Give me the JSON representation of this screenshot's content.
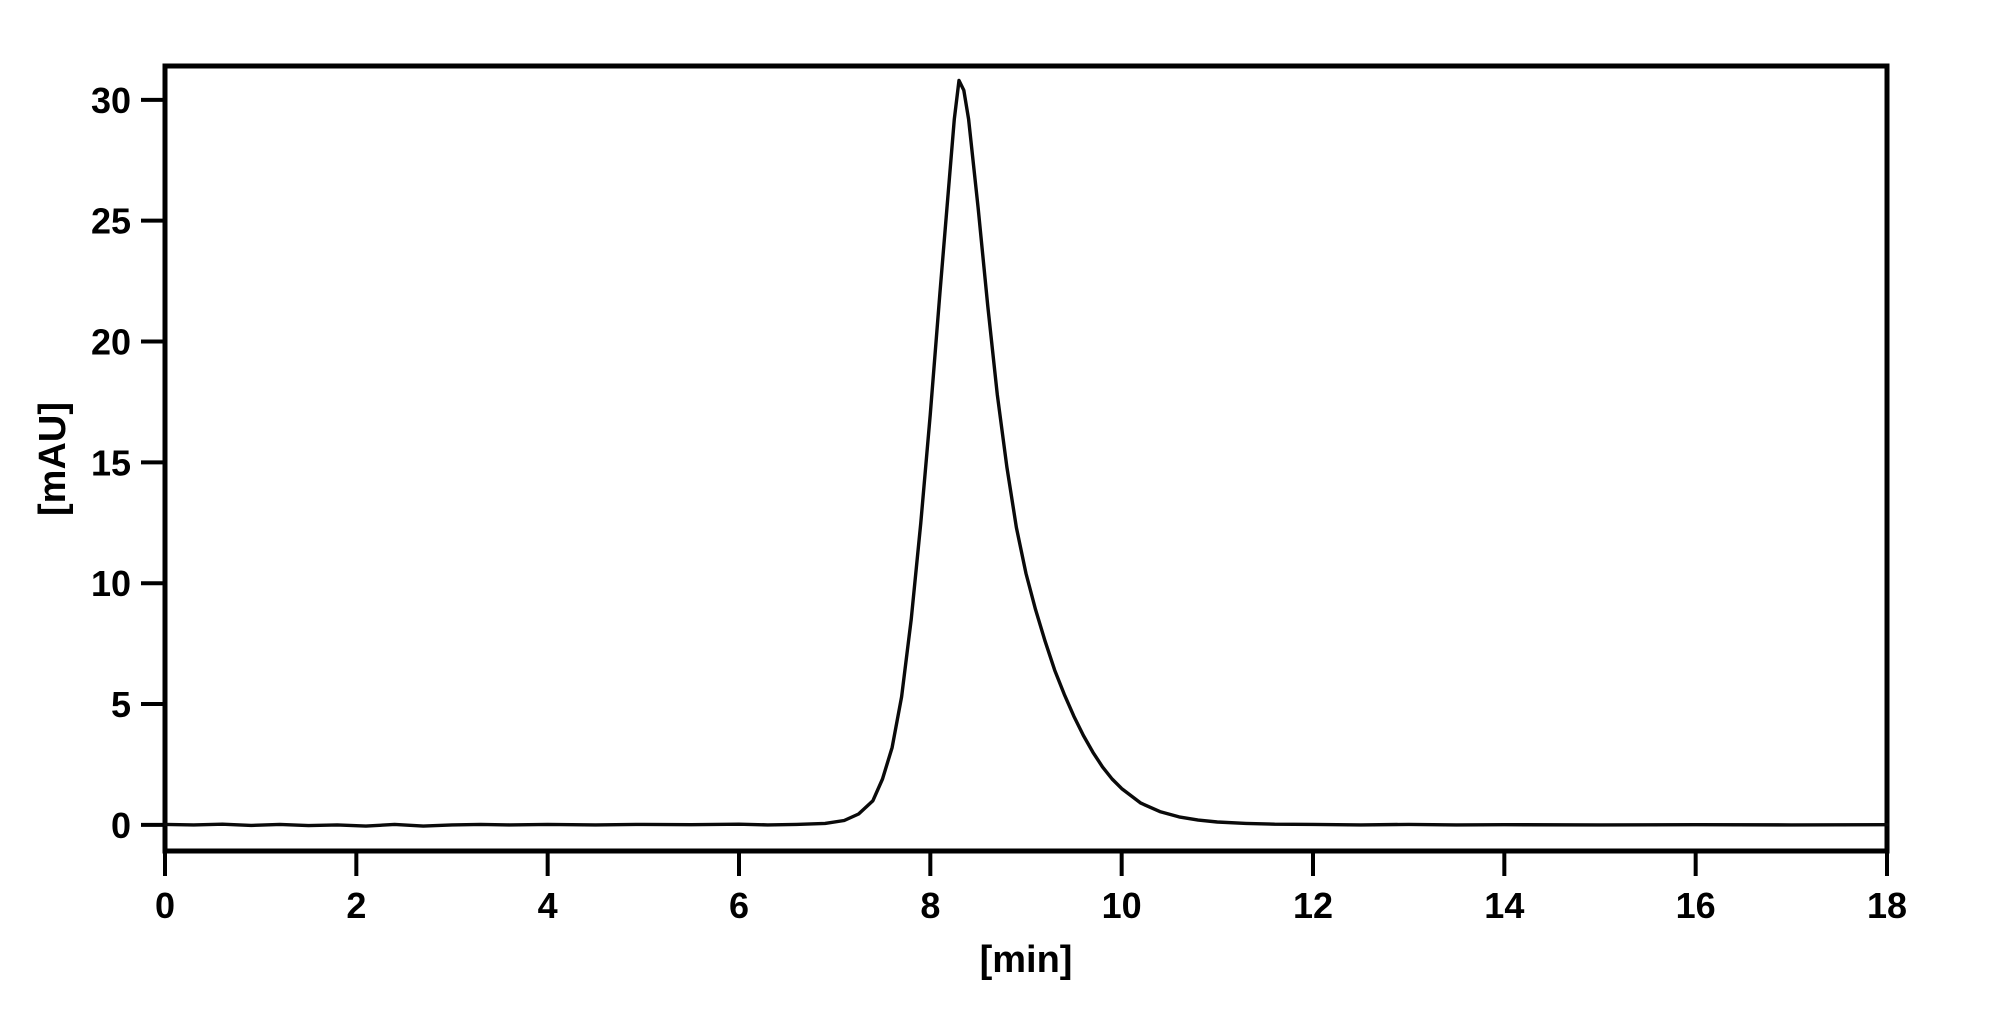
{
  "figure": {
    "background_color": "#ffffff",
    "frame_color": "#000000",
    "trace_color": "#0a0a0a"
  },
  "chart_data": {
    "type": "line",
    "title": "",
    "xlabel": "[min]",
    "ylabel": "[mAU]",
    "xlim": [
      0,
      18
    ],
    "ylim": [
      -1.08,
      31.4
    ],
    "x_ticks": [
      0,
      2,
      4,
      6,
      8,
      10,
      12,
      14,
      16,
      18
    ],
    "y_ticks": [
      0,
      5,
      10,
      15,
      20,
      25,
      30
    ],
    "grid": false,
    "legend": "none",
    "peak_apex": {
      "x_min": 8.3,
      "y_mAU": 30.8
    },
    "series": [
      {
        "name": "absorbance-trace",
        "color": "#0a0a0a",
        "points": [
          [
            0.0,
            0.02
          ],
          [
            0.3,
            0.0
          ],
          [
            0.6,
            0.03
          ],
          [
            0.9,
            -0.02
          ],
          [
            1.2,
            0.02
          ],
          [
            1.5,
            -0.03
          ],
          [
            1.8,
            0.0
          ],
          [
            2.1,
            -0.05
          ],
          [
            2.4,
            0.02
          ],
          [
            2.7,
            -0.05
          ],
          [
            3.0,
            0.0
          ],
          [
            3.3,
            0.02
          ],
          [
            3.6,
            0.0
          ],
          [
            4.0,
            0.02
          ],
          [
            4.5,
            0.0
          ],
          [
            5.0,
            0.02
          ],
          [
            5.5,
            0.01
          ],
          [
            6.0,
            0.03
          ],
          [
            6.3,
            0.0
          ],
          [
            6.6,
            0.02
          ],
          [
            6.9,
            0.06
          ],
          [
            7.1,
            0.18
          ],
          [
            7.25,
            0.45
          ],
          [
            7.4,
            1.0
          ],
          [
            7.5,
            1.9
          ],
          [
            7.6,
            3.2
          ],
          [
            7.7,
            5.3
          ],
          [
            7.8,
            8.5
          ],
          [
            7.9,
            12.5
          ],
          [
            8.0,
            17.0
          ],
          [
            8.1,
            22.0
          ],
          [
            8.2,
            26.8
          ],
          [
            8.25,
            29.2
          ],
          [
            8.3,
            30.8
          ],
          [
            8.35,
            30.4
          ],
          [
            8.4,
            29.2
          ],
          [
            8.5,
            25.5
          ],
          [
            8.6,
            21.5
          ],
          [
            8.7,
            17.8
          ],
          [
            8.8,
            14.8
          ],
          [
            8.9,
            12.3
          ],
          [
            9.0,
            10.4
          ],
          [
            9.1,
            8.9
          ],
          [
            9.2,
            7.6
          ],
          [
            9.3,
            6.4
          ],
          [
            9.4,
            5.4
          ],
          [
            9.5,
            4.5
          ],
          [
            9.6,
            3.7
          ],
          [
            9.7,
            3.0
          ],
          [
            9.8,
            2.4
          ],
          [
            9.9,
            1.9
          ],
          [
            10.0,
            1.5
          ],
          [
            10.2,
            0.9
          ],
          [
            10.4,
            0.55
          ],
          [
            10.6,
            0.33
          ],
          [
            10.8,
            0.2
          ],
          [
            11.0,
            0.12
          ],
          [
            11.3,
            0.06
          ],
          [
            11.6,
            0.03
          ],
          [
            12.0,
            0.02
          ],
          [
            12.5,
            0.0
          ],
          [
            13.0,
            0.02
          ],
          [
            13.5,
            0.0
          ],
          [
            14.0,
            0.01
          ],
          [
            15.0,
            0.0
          ],
          [
            16.0,
            0.01
          ],
          [
            17.0,
            0.0
          ],
          [
            18.0,
            0.01
          ]
        ]
      }
    ]
  }
}
